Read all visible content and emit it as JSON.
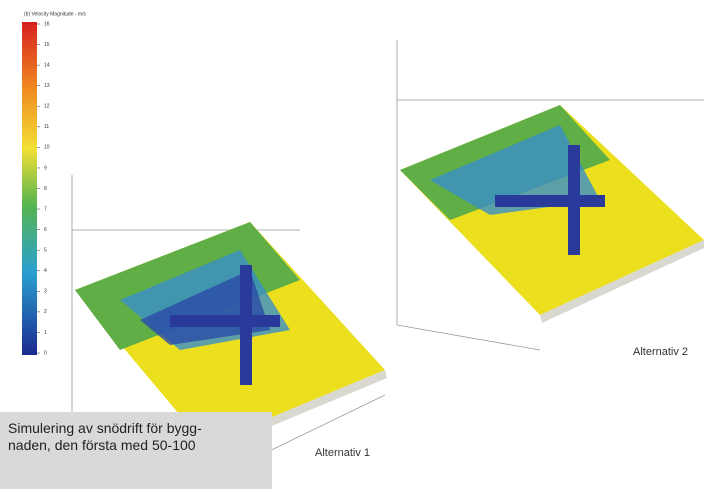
{
  "colorbar": {
    "title": "(b) Velocity Magnitude - m/s",
    "ticks": [
      16,
      15,
      14,
      13,
      12,
      11,
      10,
      9,
      8,
      7,
      6,
      5,
      4,
      3,
      2,
      1,
      0
    ]
  },
  "figures": [
    {
      "label": "Alternativ 1"
    },
    {
      "label": "Alternativ 2"
    }
  ],
  "caption": {
    "lines": [
      "Simulering av snödrift för bygg-",
      "naden, den första med 50-100"
    ]
  }
}
